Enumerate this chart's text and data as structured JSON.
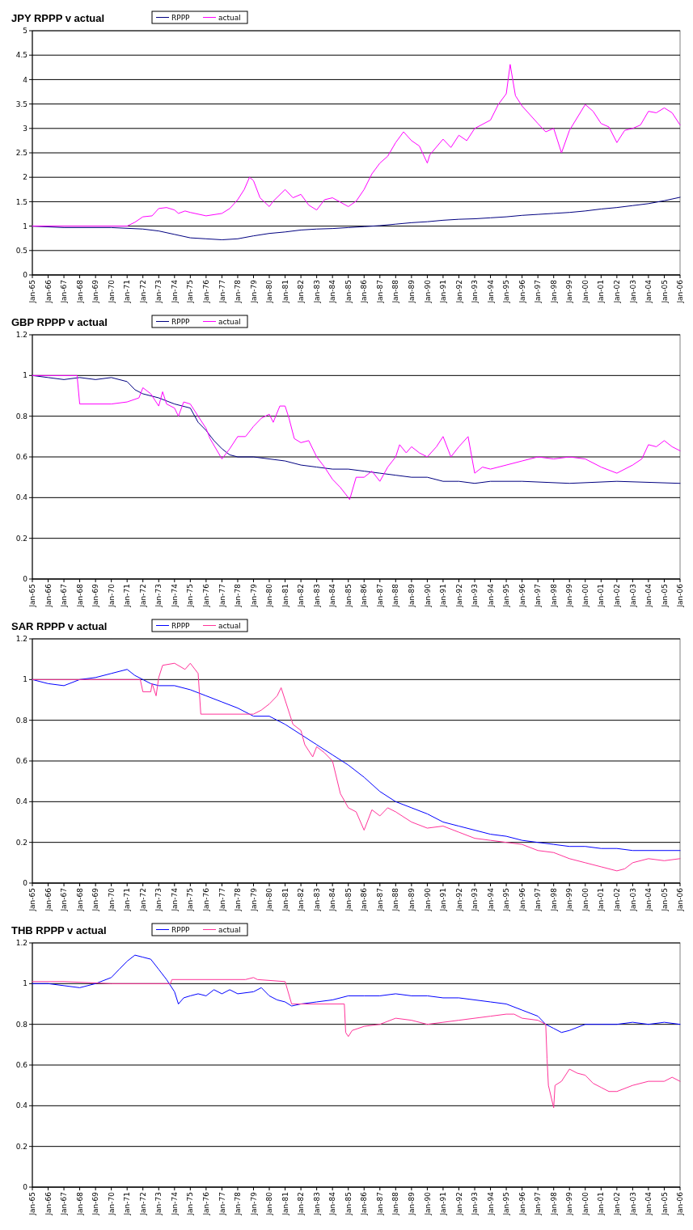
{
  "chart_data": [
    {
      "type": "line",
      "title": "JPY RPPP v actual",
      "legend": "top",
      "grid": "y",
      "ylim": [
        0,
        5
      ],
      "yticks": [
        0,
        0.5,
        1,
        1.5,
        2,
        2.5,
        3,
        3.5,
        4,
        4.5,
        5
      ],
      "xlim": [
        "1965-01",
        "2006-01"
      ],
      "xticks": [
        {
          "value": "1965-01",
          "label": "Jan-65"
        },
        {
          "value": "1966-01",
          "label": "Jan-66"
        },
        {
          "value": "1967-01",
          "label": "Jan-67"
        },
        {
          "value": "1968-01",
          "label": "Jan-68"
        },
        {
          "value": "1969-01",
          "label": "Jan-69"
        },
        {
          "value": "1970-01",
          "label": "Jan-70"
        },
        {
          "value": "1971-01",
          "label": "Jan-71"
        },
        {
          "value": "1972-01",
          "label": "Jan-72"
        },
        {
          "value": "1973-01",
          "label": "Jan-73"
        },
        {
          "value": "1974-01",
          "label": "Jan-74"
        },
        {
          "value": "1975-01",
          "label": "Jan-75"
        },
        {
          "value": "1976-01",
          "label": "Jan-76"
        },
        {
          "value": "1977-01",
          "label": "Jan-77"
        },
        {
          "value": "1978-01",
          "label": "Jan-78"
        },
        {
          "value": "1979-01",
          "label": "Jan-79"
        },
        {
          "value": "1980-01",
          "label": "Jan-80"
        },
        {
          "value": "1981-01",
          "label": "Jan-81"
        },
        {
          "value": "1982-01",
          "label": "Jan-82"
        },
        {
          "value": "1983-01",
          "label": "Jan-83"
        },
        {
          "value": "1984-01",
          "label": "Jan-84"
        },
        {
          "value": "1985-01",
          "label": "Jan-85"
        },
        {
          "value": "1986-01",
          "label": "Jan-86"
        },
        {
          "value": "1987-01",
          "label": "Jan-87"
        },
        {
          "value": "1988-01",
          "label": "Jan-88"
        },
        {
          "value": "1989-01",
          "label": "Jan-89"
        },
        {
          "value": "1990-01",
          "label": "Jan-90"
        },
        {
          "value": "1991-01",
          "label": "Jan-91"
        },
        {
          "value": "1992-01",
          "label": "Jan-92"
        },
        {
          "value": "1993-01",
          "label": "Jan-93"
        },
        {
          "value": "1994-01",
          "label": "Jan-94"
        },
        {
          "value": "1995-01",
          "label": "Jan-95"
        },
        {
          "value": "1996-01",
          "label": "Jan-96"
        },
        {
          "value": "1997-01",
          "label": "Jan-97"
        },
        {
          "value": "1998-01",
          "label": "Jan-98"
        },
        {
          "value": "1999-01",
          "label": "Jan-99"
        },
        {
          "value": "2000-01",
          "label": "Jan-00"
        },
        {
          "value": "2001-01",
          "label": "Jan-01"
        },
        {
          "value": "2002-01",
          "label": "Jan-02"
        },
        {
          "value": "2003-01",
          "label": "Jan-03"
        },
        {
          "value": "2004-01",
          "label": "Jan-04"
        },
        {
          "value": "2005-01",
          "label": "Jan-05"
        },
        {
          "value": "2006-01",
          "label": "Jan-06"
        }
      ],
      "series": [
        {
          "name": "RPPP",
          "color": "#000080",
          "x": [
            "1965-01",
            "1967-01",
            "1970-01",
            "1972-01",
            "1973-01",
            "1974-01",
            "1975-01",
            "1976-01",
            "1977-01",
            "1978-01",
            "1979-01",
            "1980-01",
            "1981-01",
            "1982-01",
            "1983-01",
            "1984-01",
            "1985-01",
            "1986-01",
            "1987-01",
            "1988-01",
            "1989-01",
            "1990-01",
            "1991-01",
            "1992-01",
            "1993-01",
            "1994-01",
            "1995-01",
            "1996-01",
            "1997-01",
            "1998-01",
            "1999-01",
            "2000-01",
            "2001-01",
            "2002-01",
            "2003-01",
            "2004-01",
            "2005-01",
            "2006-01"
          ],
          "values": [
            1.0,
            0.97,
            0.97,
            0.94,
            0.9,
            0.83,
            0.76,
            0.74,
            0.72,
            0.74,
            0.8,
            0.85,
            0.88,
            0.92,
            0.94,
            0.95,
            0.97,
            0.99,
            1.01,
            1.04,
            1.07,
            1.09,
            1.12,
            1.14,
            1.15,
            1.17,
            1.19,
            1.22,
            1.24,
            1.26,
            1.28,
            1.31,
            1.35,
            1.38,
            1.42,
            1.46,
            1.52,
            1.59
          ]
        },
        {
          "name": "actual",
          "color": "#ff00ff",
          "x": [
            "1965-01",
            "1971-01",
            "1971-07",
            "1972-01",
            "1972-08",
            "1973-01",
            "1973-07",
            "1974-01",
            "1974-04",
            "1974-09",
            "1975-01",
            "1976-01",
            "1977-01",
            "1977-07",
            "1978-01",
            "1978-06",
            "1978-10",
            "1979-01",
            "1979-06",
            "1980-01",
            "1980-04",
            "1981-01",
            "1981-07",
            "1982-01",
            "1982-07",
            "1983-01",
            "1983-07",
            "1984-01",
            "1985-01",
            "1985-07",
            "1986-01",
            "1986-07",
            "1987-01",
            "1987-07",
            "1988-01",
            "1988-07",
            "1989-01",
            "1989-07",
            "1990-01",
            "1990-03",
            "1991-01",
            "1991-07",
            "1992-01",
            "1992-07",
            "1993-01",
            "1994-01",
            "1994-07",
            "1995-01",
            "1995-04",
            "1995-08",
            "1996-01",
            "1997-01",
            "1997-07",
            "1998-01",
            "1998-07",
            "1999-01",
            "2000-01",
            "2000-07",
            "2001-01",
            "2001-07",
            "2002-01",
            "2002-07",
            "2003-01",
            "2003-07",
            "2004-01",
            "2004-07",
            "2005-01",
            "2005-07",
            "2006-01"
          ],
          "values": [
            1.0,
            1.0,
            1.08,
            1.19,
            1.21,
            1.36,
            1.38,
            1.33,
            1.26,
            1.31,
            1.28,
            1.21,
            1.26,
            1.36,
            1.54,
            1.75,
            2.0,
            1.93,
            1.58,
            1.4,
            1.51,
            1.75,
            1.58,
            1.65,
            1.43,
            1.33,
            1.54,
            1.58,
            1.4,
            1.51,
            1.75,
            2.07,
            2.29,
            2.43,
            2.71,
            2.93,
            2.75,
            2.64,
            2.29,
            2.46,
            2.78,
            2.61,
            2.86,
            2.75,
            3.0,
            3.17,
            3.49,
            3.71,
            4.31,
            3.67,
            3.46,
            3.1,
            2.93,
            3.0,
            2.5,
            2.96,
            3.49,
            3.35,
            3.1,
            3.03,
            2.71,
            2.96,
            3.0,
            3.07,
            3.35,
            3.32,
            3.42,
            3.32,
            3.07
          ]
        }
      ]
    },
    {
      "type": "line",
      "title": "GBP RPPP v actual",
      "legend": "top",
      "grid": "y",
      "ylim": [
        0,
        1.2
      ],
      "yticks": [
        0,
        0.2,
        0.4,
        0.6,
        0.8,
        1,
        1.2
      ],
      "xlim": [
        "1965-01",
        "2006-01"
      ],
      "xticks": [
        {
          "value": "1965-01",
          "label": "Jan-65"
        },
        {
          "value": "1966-01",
          "label": "Jan-66"
        },
        {
          "value": "1967-01",
          "label": "Jan-67"
        },
        {
          "value": "1968-01",
          "label": "Jan-68"
        },
        {
          "value": "1969-01",
          "label": "Jan-69"
        },
        {
          "value": "1970-01",
          "label": "Jan-70"
        },
        {
          "value": "1971-01",
          "label": "Jan-71"
        },
        {
          "value": "1972-01",
          "label": "Jan-72"
        },
        {
          "value": "1973-01",
          "label": "Jan-73"
        },
        {
          "value": "1974-01",
          "label": "Jan-74"
        },
        {
          "value": "1975-01",
          "label": "Jan-75"
        },
        {
          "value": "1976-01",
          "label": "Jan-76"
        },
        {
          "value": "1977-01",
          "label": "Jan-77"
        },
        {
          "value": "1978-01",
          "label": "Jan-78"
        },
        {
          "value": "1979-01",
          "label": "Jan-79"
        },
        {
          "value": "1980-01",
          "label": "Jan-80"
        },
        {
          "value": "1981-01",
          "label": "Jan-81"
        },
        {
          "value": "1982-01",
          "label": "Jan-82"
        },
        {
          "value": "1983-01",
          "label": "Jan-83"
        },
        {
          "value": "1984-01",
          "label": "Jan-84"
        },
        {
          "value": "1985-01",
          "label": "Jan-85"
        },
        {
          "value": "1986-01",
          "label": "Jan-86"
        },
        {
          "value": "1987-01",
          "label": "Jan-87"
        },
        {
          "value": "1988-01",
          "label": "Jan-88"
        },
        {
          "value": "1989-01",
          "label": "Jan-89"
        },
        {
          "value": "1990-01",
          "label": "Jan-90"
        },
        {
          "value": "1991-01",
          "label": "Jan-91"
        },
        {
          "value": "1992-01",
          "label": "Jan-92"
        },
        {
          "value": "1993-01",
          "label": "Jan-93"
        },
        {
          "value": "1994-01",
          "label": "Jan-94"
        },
        {
          "value": "1995-01",
          "label": "Jan-95"
        },
        {
          "value": "1996-01",
          "label": "Jan-96"
        },
        {
          "value": "1997-01",
          "label": "Jan-97"
        },
        {
          "value": "1998-01",
          "label": "Jan-98"
        },
        {
          "value": "1999-01",
          "label": "Jan-99"
        },
        {
          "value": "2000-01",
          "label": "Jan-00"
        },
        {
          "value": "2001-01",
          "label": "Jan-01"
        },
        {
          "value": "2002-01",
          "label": "Jan-02"
        },
        {
          "value": "2003-01",
          "label": "Jan-03"
        },
        {
          "value": "2004-01",
          "label": "Jan-04"
        },
        {
          "value": "2005-01",
          "label": "Jan-05"
        },
        {
          "value": "2006-01",
          "label": "Jan-06"
        }
      ],
      "series": [
        {
          "name": "RPPP",
          "color": "#000080",
          "x": [
            "1965-01",
            "1966-01",
            "1967-01",
            "1968-01",
            "1969-01",
            "1970-01",
            "1971-01",
            "1971-07",
            "1972-01",
            "1973-01",
            "1974-01",
            "1975-01",
            "1975-07",
            "1976-01",
            "1976-07",
            "1977-01",
            "1977-07",
            "1978-01",
            "1979-01",
            "1980-01",
            "1981-01",
            "1982-01",
            "1983-01",
            "1984-01",
            "1985-01",
            "1986-01",
            "1987-01",
            "1988-01",
            "1989-01",
            "1990-01",
            "1991-01",
            "1992-01",
            "1993-01",
            "1994-01",
            "1996-01",
            "1999-01",
            "2002-01",
            "2006-01"
          ],
          "values": [
            1.0,
            0.99,
            0.98,
            0.99,
            0.98,
            0.99,
            0.97,
            0.93,
            0.91,
            0.89,
            0.86,
            0.84,
            0.77,
            0.73,
            0.68,
            0.64,
            0.61,
            0.6,
            0.6,
            0.59,
            0.58,
            0.56,
            0.55,
            0.54,
            0.54,
            0.53,
            0.52,
            0.51,
            0.5,
            0.5,
            0.48,
            0.48,
            0.47,
            0.48,
            0.48,
            0.47,
            0.48,
            0.47
          ]
        },
        {
          "name": "actual",
          "color": "#ff00ff",
          "x": [
            "1965-01",
            "1967-11",
            "1968-01",
            "1970-01",
            "1971-01",
            "1971-10",
            "1972-01",
            "1972-07",
            "1973-01",
            "1973-04",
            "1973-07",
            "1974-01",
            "1974-04",
            "1974-08",
            "1975-01",
            "1975-07",
            "1976-01",
            "1976-04",
            "1977-01",
            "1977-07",
            "1978-01",
            "1978-07",
            "1979-01",
            "1979-07",
            "1980-01",
            "1980-04",
            "1980-09",
            "1981-01",
            "1981-04",
            "1981-08",
            "1982-01",
            "1982-07",
            "1983-01",
            "1983-07",
            "1984-01",
            "1984-07",
            "1985-01",
            "1985-02",
            "1985-07",
            "1986-01",
            "1986-07",
            "1987-01",
            "1987-07",
            "1988-01",
            "1988-04",
            "1988-09",
            "1989-01",
            "1989-07",
            "1990-01",
            "1990-08",
            "1991-01",
            "1991-07",
            "1992-01",
            "1992-08",
            "1993-01",
            "1993-07",
            "1994-01",
            "1995-01",
            "1996-01",
            "1997-01",
            "1998-01",
            "1999-01",
            "2000-01",
            "2001-01",
            "2002-01",
            "2003-01",
            "2003-08",
            "2004-01",
            "2004-07",
            "2005-01",
            "2005-07",
            "2006-01"
          ],
          "values": [
            1.0,
            1.0,
            0.86,
            0.86,
            0.87,
            0.89,
            0.94,
            0.91,
            0.85,
            0.92,
            0.86,
            0.84,
            0.8,
            0.87,
            0.86,
            0.8,
            0.74,
            0.69,
            0.59,
            0.64,
            0.7,
            0.7,
            0.75,
            0.79,
            0.81,
            0.77,
            0.85,
            0.85,
            0.79,
            0.69,
            0.67,
            0.68,
            0.6,
            0.55,
            0.49,
            0.45,
            0.4,
            0.39,
            0.5,
            0.5,
            0.53,
            0.48,
            0.55,
            0.6,
            0.66,
            0.62,
            0.65,
            0.62,
            0.6,
            0.65,
            0.7,
            0.6,
            0.65,
            0.7,
            0.52,
            0.55,
            0.54,
            0.56,
            0.58,
            0.6,
            0.59,
            0.6,
            0.59,
            0.55,
            0.52,
            0.56,
            0.59,
            0.66,
            0.65,
            0.68,
            0.65,
            0.63
          ]
        }
      ]
    },
    {
      "type": "line",
      "title": "SAR RPPP v actual",
      "legend": "top",
      "grid": "y",
      "ylim": [
        0,
        1.2
      ],
      "yticks": [
        0,
        0.2,
        0.4,
        0.6,
        0.8,
        1,
        1.2
      ],
      "xlim": [
        "1965-01",
        "2006-01"
      ],
      "xticks": [
        {
          "value": "1965-01",
          "label": "Jan-65"
        },
        {
          "value": "1966-01",
          "label": "Jan-66"
        },
        {
          "value": "1967-01",
          "label": "Jan-67"
        },
        {
          "value": "1968-01",
          "label": "Jan-68"
        },
        {
          "value": "1969-01",
          "label": "Jan-69"
        },
        {
          "value": "1970-01",
          "label": "Jan-70"
        },
        {
          "value": "1971-01",
          "label": "Jan-71"
        },
        {
          "value": "1972-01",
          "label": "Jan-72"
        },
        {
          "value": "1973-01",
          "label": "Jan-73"
        },
        {
          "value": "1974-01",
          "label": "Jan-74"
        },
        {
          "value": "1975-01",
          "label": "Jan-75"
        },
        {
          "value": "1976-01",
          "label": "Jan-76"
        },
        {
          "value": "1977-01",
          "label": "Jan-77"
        },
        {
          "value": "1978-01",
          "label": "Jan-78"
        },
        {
          "value": "1979-01",
          "label": "Jan-79"
        },
        {
          "value": "1980-01",
          "label": "Jan-80"
        },
        {
          "value": "1981-01",
          "label": "Jan-81"
        },
        {
          "value": "1982-01",
          "label": "Jan-82"
        },
        {
          "value": "1983-01",
          "label": "Jan-83"
        },
        {
          "value": "1984-01",
          "label": "Jan-84"
        },
        {
          "value": "1985-01",
          "label": "Jan-85"
        },
        {
          "value": "1986-01",
          "label": "Jan-86"
        },
        {
          "value": "1987-01",
          "label": "Jan-87"
        },
        {
          "value": "1988-01",
          "label": "Jan-88"
        },
        {
          "value": "1989-01",
          "label": "Jan-89"
        },
        {
          "value": "1990-01",
          "label": "Jan-90"
        },
        {
          "value": "1991-01",
          "label": "Jan-91"
        },
        {
          "value": "1992-01",
          "label": "Jan-92"
        },
        {
          "value": "1993-01",
          "label": "Jan-93"
        },
        {
          "value": "1994-01",
          "label": "Jan-94"
        },
        {
          "value": "1995-01",
          "label": "Jan-95"
        },
        {
          "value": "1996-01",
          "label": "Jan-96"
        },
        {
          "value": "1997-01",
          "label": "Jan-97"
        },
        {
          "value": "1998-01",
          "label": "Jan-98"
        },
        {
          "value": "1999-01",
          "label": "Jan-99"
        },
        {
          "value": "2000-01",
          "label": "Jan-00"
        },
        {
          "value": "2001-01",
          "label": "Jan-01"
        },
        {
          "value": "2002-01",
          "label": "Jan-02"
        },
        {
          "value": "2003-01",
          "label": "Jan-03"
        },
        {
          "value": "2004-01",
          "label": "Jan-04"
        },
        {
          "value": "2005-01",
          "label": "Jan-05"
        },
        {
          "value": "2006-01",
          "label": "Jan-06"
        }
      ],
      "series": [
        {
          "name": "RPPP",
          "color": "#0000ff",
          "x": [
            "1965-01",
            "1966-01",
            "1967-01",
            "1968-01",
            "1969-01",
            "1970-01",
            "1971-01",
            "1971-07",
            "1972-01",
            "1972-07",
            "1973-01",
            "1974-01",
            "1975-01",
            "1976-01",
            "1977-01",
            "1978-01",
            "1979-01",
            "1980-01",
            "1980-07",
            "1981-01",
            "1982-01",
            "1983-01",
            "1984-01",
            "1985-01",
            "1986-01",
            "1987-01",
            "1988-01",
            "1989-01",
            "1990-01",
            "1991-01",
            "1992-01",
            "1993-01",
            "1994-01",
            "1995-01",
            "1996-01",
            "1997-01",
            "1998-01",
            "1999-01",
            "2000-01",
            "2001-01",
            "2002-01",
            "2003-01",
            "2006-01"
          ],
          "values": [
            1.0,
            0.98,
            0.97,
            1.0,
            1.01,
            1.03,
            1.05,
            1.02,
            1.0,
            0.98,
            0.97,
            0.97,
            0.95,
            0.92,
            0.89,
            0.86,
            0.82,
            0.82,
            0.8,
            0.78,
            0.73,
            0.68,
            0.63,
            0.58,
            0.52,
            0.45,
            0.4,
            0.37,
            0.34,
            0.3,
            0.28,
            0.26,
            0.24,
            0.23,
            0.21,
            0.2,
            0.19,
            0.18,
            0.18,
            0.17,
            0.17,
            0.16,
            0.16
          ]
        },
        {
          "name": "actual",
          "color": "#ff3399",
          "x": [
            "1965-01",
            "1971-11",
            "1972-01",
            "1972-07",
            "1972-08",
            "1972-11",
            "1973-01",
            "1973-04",
            "1974-01",
            "1974-09",
            "1975-01",
            "1975-07",
            "1975-09",
            "1979-01",
            "1979-07",
            "1980-01",
            "1980-07",
            "1980-10",
            "1981-07",
            "1982-01",
            "1982-04",
            "1982-10",
            "1983-01",
            "1983-07",
            "1984-01",
            "1984-07",
            "1985-01",
            "1985-07",
            "1986-01",
            "1986-07",
            "1987-01",
            "1987-07",
            "1988-01",
            "1989-01",
            "1990-01",
            "1991-01",
            "1992-01",
            "1993-01",
            "1994-01",
            "1995-01",
            "1996-01",
            "1997-01",
            "1998-01",
            "1999-01",
            "2000-01",
            "2001-01",
            "2002-01",
            "2002-07",
            "2003-01",
            "2004-01",
            "2005-01",
            "2006-01"
          ],
          "values": [
            1.0,
            1.0,
            0.94,
            0.94,
            0.98,
            0.92,
            1.01,
            1.07,
            1.08,
            1.05,
            1.08,
            1.03,
            0.83,
            0.83,
            0.85,
            0.88,
            0.92,
            0.96,
            0.78,
            0.75,
            0.68,
            0.62,
            0.67,
            0.64,
            0.6,
            0.44,
            0.37,
            0.35,
            0.26,
            0.36,
            0.33,
            0.37,
            0.35,
            0.3,
            0.27,
            0.28,
            0.25,
            0.22,
            0.21,
            0.2,
            0.19,
            0.16,
            0.15,
            0.12,
            0.1,
            0.08,
            0.06,
            0.07,
            0.1,
            0.12,
            0.11,
            0.12
          ]
        }
      ]
    },
    {
      "type": "line",
      "title": "THB RPPP v actual",
      "legend": "top",
      "grid": "y",
      "ylim": [
        0,
        1.2
      ],
      "yticks": [
        0,
        0.2,
        0.4,
        0.6,
        0.8,
        1,
        1.2
      ],
      "xlim": [
        "1965-01",
        "2006-01"
      ],
      "xticks": [
        {
          "value": "1965-01",
          "label": "Jan-65"
        },
        {
          "value": "1966-01",
          "label": "Jan-66"
        },
        {
          "value": "1967-01",
          "label": "Jan-67"
        },
        {
          "value": "1968-01",
          "label": "Jan-68"
        },
        {
          "value": "1969-01",
          "label": "Jan-69"
        },
        {
          "value": "1970-01",
          "label": "Jan-70"
        },
        {
          "value": "1971-01",
          "label": "Jan-71"
        },
        {
          "value": "1972-01",
          "label": "Jan-72"
        },
        {
          "value": "1973-01",
          "label": "Jan-73"
        },
        {
          "value": "1974-01",
          "label": "Jan-74"
        },
        {
          "value": "1975-01",
          "label": "Jan-75"
        },
        {
          "value": "1976-01",
          "label": "Jan-76"
        },
        {
          "value": "1977-01",
          "label": "Jan-77"
        },
        {
          "value": "1978-01",
          "label": "Jan-78"
        },
        {
          "value": "1979-01",
          "label": "Jan-79"
        },
        {
          "value": "1980-01",
          "label": "Jan-80"
        },
        {
          "value": "1981-01",
          "label": "Jan-81"
        },
        {
          "value": "1982-01",
          "label": "Jan-82"
        },
        {
          "value": "1983-01",
          "label": "Jan-83"
        },
        {
          "value": "1984-01",
          "label": "Jan-84"
        },
        {
          "value": "1985-01",
          "label": "Jan-85"
        },
        {
          "value": "1986-01",
          "label": "Jan-86"
        },
        {
          "value": "1987-01",
          "label": "Jan-87"
        },
        {
          "value": "1988-01",
          "label": "Jan-88"
        },
        {
          "value": "1989-01",
          "label": "Jan-89"
        },
        {
          "value": "1990-01",
          "label": "Jan-90"
        },
        {
          "value": "1991-01",
          "label": "Jan-91"
        },
        {
          "value": "1992-01",
          "label": "Jan-92"
        },
        {
          "value": "1993-01",
          "label": "Jan-93"
        },
        {
          "value": "1994-01",
          "label": "Jan-94"
        },
        {
          "value": "1995-01",
          "label": "Jan-95"
        },
        {
          "value": "1996-01",
          "label": "Jan-96"
        },
        {
          "value": "1997-01",
          "label": "Jan-97"
        },
        {
          "value": "1998-01",
          "label": "Jan-98"
        },
        {
          "value": "1999-01",
          "label": "Jan-99"
        },
        {
          "value": "2000-01",
          "label": "Jan-00"
        },
        {
          "value": "2001-01",
          "label": "Jan-01"
        },
        {
          "value": "2002-01",
          "label": "Jan-02"
        },
        {
          "value": "2003-01",
          "label": "Jan-03"
        },
        {
          "value": "2004-01",
          "label": "Jan-04"
        },
        {
          "value": "2005-01",
          "label": "Jan-05"
        },
        {
          "value": "2006-01",
          "label": "Jan-06"
        }
      ],
      "series": [
        {
          "name": "RPPP",
          "color": "#0000ff",
          "x": [
            "1965-01",
            "1966-01",
            "1967-01",
            "1968-01",
            "1969-01",
            "1970-01",
            "1970-07",
            "1971-01",
            "1971-07",
            "1972-01",
            "1972-07",
            "1973-01",
            "1973-07",
            "1974-01",
            "1974-04",
            "1974-08",
            "1975-01",
            "1975-07",
            "1976-01",
            "1976-07",
            "1977-01",
            "1977-07",
            "1978-01",
            "1979-01",
            "1979-07",
            "1980-01",
            "1980-07",
            "1981-01",
            "1981-06",
            "1982-01",
            "1983-01",
            "1984-01",
            "1985-01",
            "1986-01",
            "1987-01",
            "1988-01",
            "1989-01",
            "1990-01",
            "1991-01",
            "1992-01",
            "1993-01",
            "1994-01",
            "1995-01",
            "1996-01",
            "1997-01",
            "1997-07",
            "1998-01",
            "1998-07",
            "1999-01",
            "2000-01",
            "2001-01",
            "2002-01",
            "2003-01",
            "2004-01",
            "2005-01",
            "2006-01"
          ],
          "values": [
            1.0,
            1.0,
            0.99,
            0.98,
            1.0,
            1.03,
            1.07,
            1.11,
            1.14,
            1.13,
            1.12,
            1.07,
            1.02,
            0.96,
            0.9,
            0.93,
            0.94,
            0.95,
            0.94,
            0.97,
            0.95,
            0.97,
            0.95,
            0.96,
            0.98,
            0.94,
            0.92,
            0.91,
            0.89,
            0.9,
            0.91,
            0.92,
            0.94,
            0.94,
            0.94,
            0.95,
            0.94,
            0.94,
            0.93,
            0.93,
            0.92,
            0.91,
            0.9,
            0.87,
            0.84,
            0.8,
            0.78,
            0.76,
            0.77,
            0.8,
            0.8,
            0.8,
            0.81,
            0.8,
            0.81,
            0.8
          ]
        },
        {
          "name": "actual",
          "color": "#ff3399",
          "x": [
            "1965-01",
            "1967-01",
            "1970-01",
            "1973-10",
            "1973-11",
            "1978-07",
            "1979-01",
            "1979-04",
            "1981-01",
            "1981-06",
            "1982-01",
            "1984-10",
            "1984-11",
            "1985-01",
            "1985-04",
            "1986-01",
            "1987-01",
            "1988-01",
            "1989-01",
            "1990-01",
            "1991-01",
            "1992-01",
            "1993-01",
            "1994-01",
            "1995-01",
            "1995-07",
            "1996-01",
            "1997-01",
            "1997-07",
            "1997-08",
            "1997-09",
            "1998-01",
            "1998-02",
            "1998-07",
            "1999-01",
            "1999-07",
            "2000-01",
            "2000-07",
            "2001-01",
            "2001-07",
            "2002-01",
            "2003-01",
            "2004-01",
            "2005-01",
            "2005-07",
            "2006-01"
          ],
          "values": [
            1.01,
            1.01,
            1.0,
            1.0,
            1.02,
            1.02,
            1.03,
            1.02,
            1.01,
            0.9,
            0.9,
            0.9,
            0.76,
            0.74,
            0.77,
            0.79,
            0.8,
            0.83,
            0.82,
            0.8,
            0.81,
            0.82,
            0.83,
            0.84,
            0.85,
            0.85,
            0.83,
            0.82,
            0.8,
            0.63,
            0.5,
            0.39,
            0.5,
            0.52,
            0.58,
            0.56,
            0.55,
            0.51,
            0.49,
            0.47,
            0.47,
            0.5,
            0.52,
            0.52,
            0.54,
            0.52
          ]
        }
      ]
    }
  ]
}
